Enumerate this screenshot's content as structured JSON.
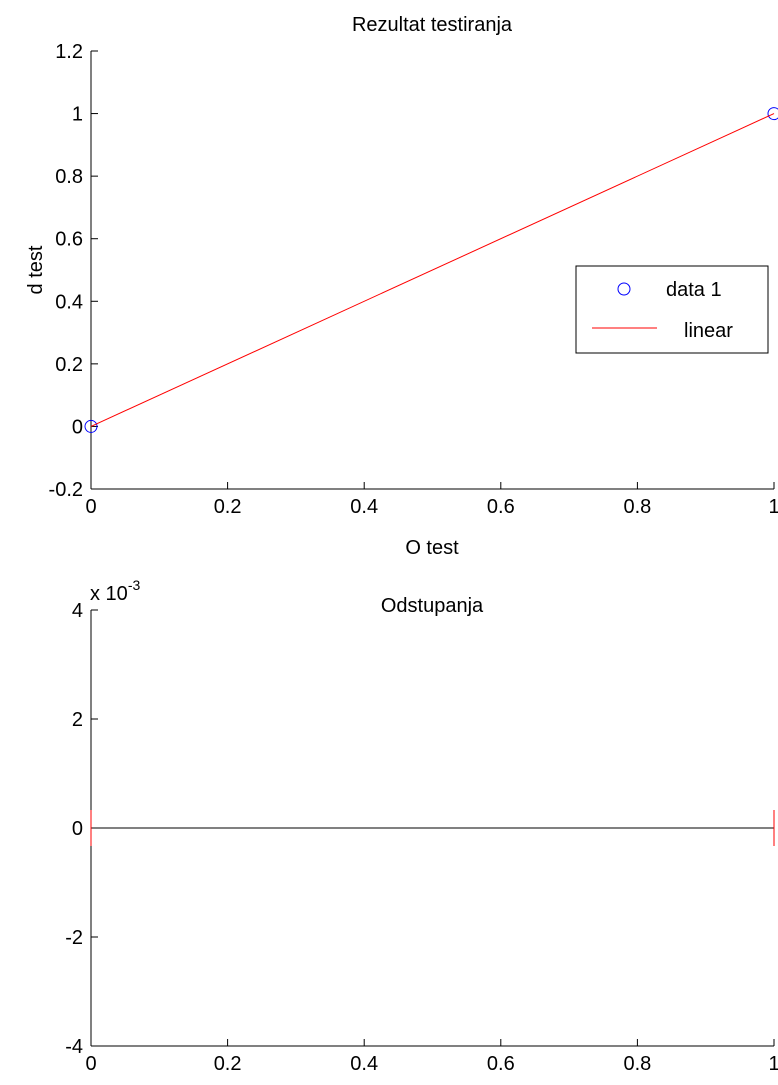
{
  "chart_data": [
    {
      "type": "line",
      "title": "Rezultat testiranja",
      "xlabel": "O test",
      "ylabel": "d test",
      "xlim": [
        0,
        1
      ],
      "ylim": [
        -0.2,
        1.2
      ],
      "xticks": [
        "0",
        "0.2",
        "0.4",
        "0.6",
        "0.8",
        "1"
      ],
      "yticks": [
        "-0.2",
        "0",
        "0.2",
        "0.4",
        "0.6",
        "0.8",
        "1",
        "1.2"
      ],
      "grid": false,
      "legend_position": "right",
      "series": [
        {
          "name": "data 1",
          "kind": "scatter",
          "marker": "circle",
          "color": "#0000ff",
          "x": [
            0,
            1
          ],
          "y": [
            0,
            1
          ]
        },
        {
          "name": "linear",
          "kind": "line",
          "color": "#ff0000",
          "x": [
            0,
            1
          ],
          "y": [
            0,
            1
          ]
        }
      ]
    },
    {
      "type": "line",
      "title": "Odstupanja",
      "exponent_label": "x 10",
      "exponent_power": "-3",
      "xlim": [
        0,
        1
      ],
      "ylim": [
        -4,
        4
      ],
      "xticks": [
        "0",
        "0.2",
        "0.4",
        "0.6",
        "0.8",
        "1"
      ],
      "yticks": [
        "-4",
        "-2",
        "0",
        "2",
        "4"
      ],
      "grid": false,
      "series": [
        {
          "kind": "zero-line",
          "color": "#000000",
          "x": [
            0,
            1
          ],
          "y": [
            0,
            0
          ]
        },
        {
          "kind": "residual-stems",
          "color": "#ff0000",
          "x": [
            0,
            1
          ],
          "y": [
            0,
            0
          ]
        }
      ]
    }
  ]
}
